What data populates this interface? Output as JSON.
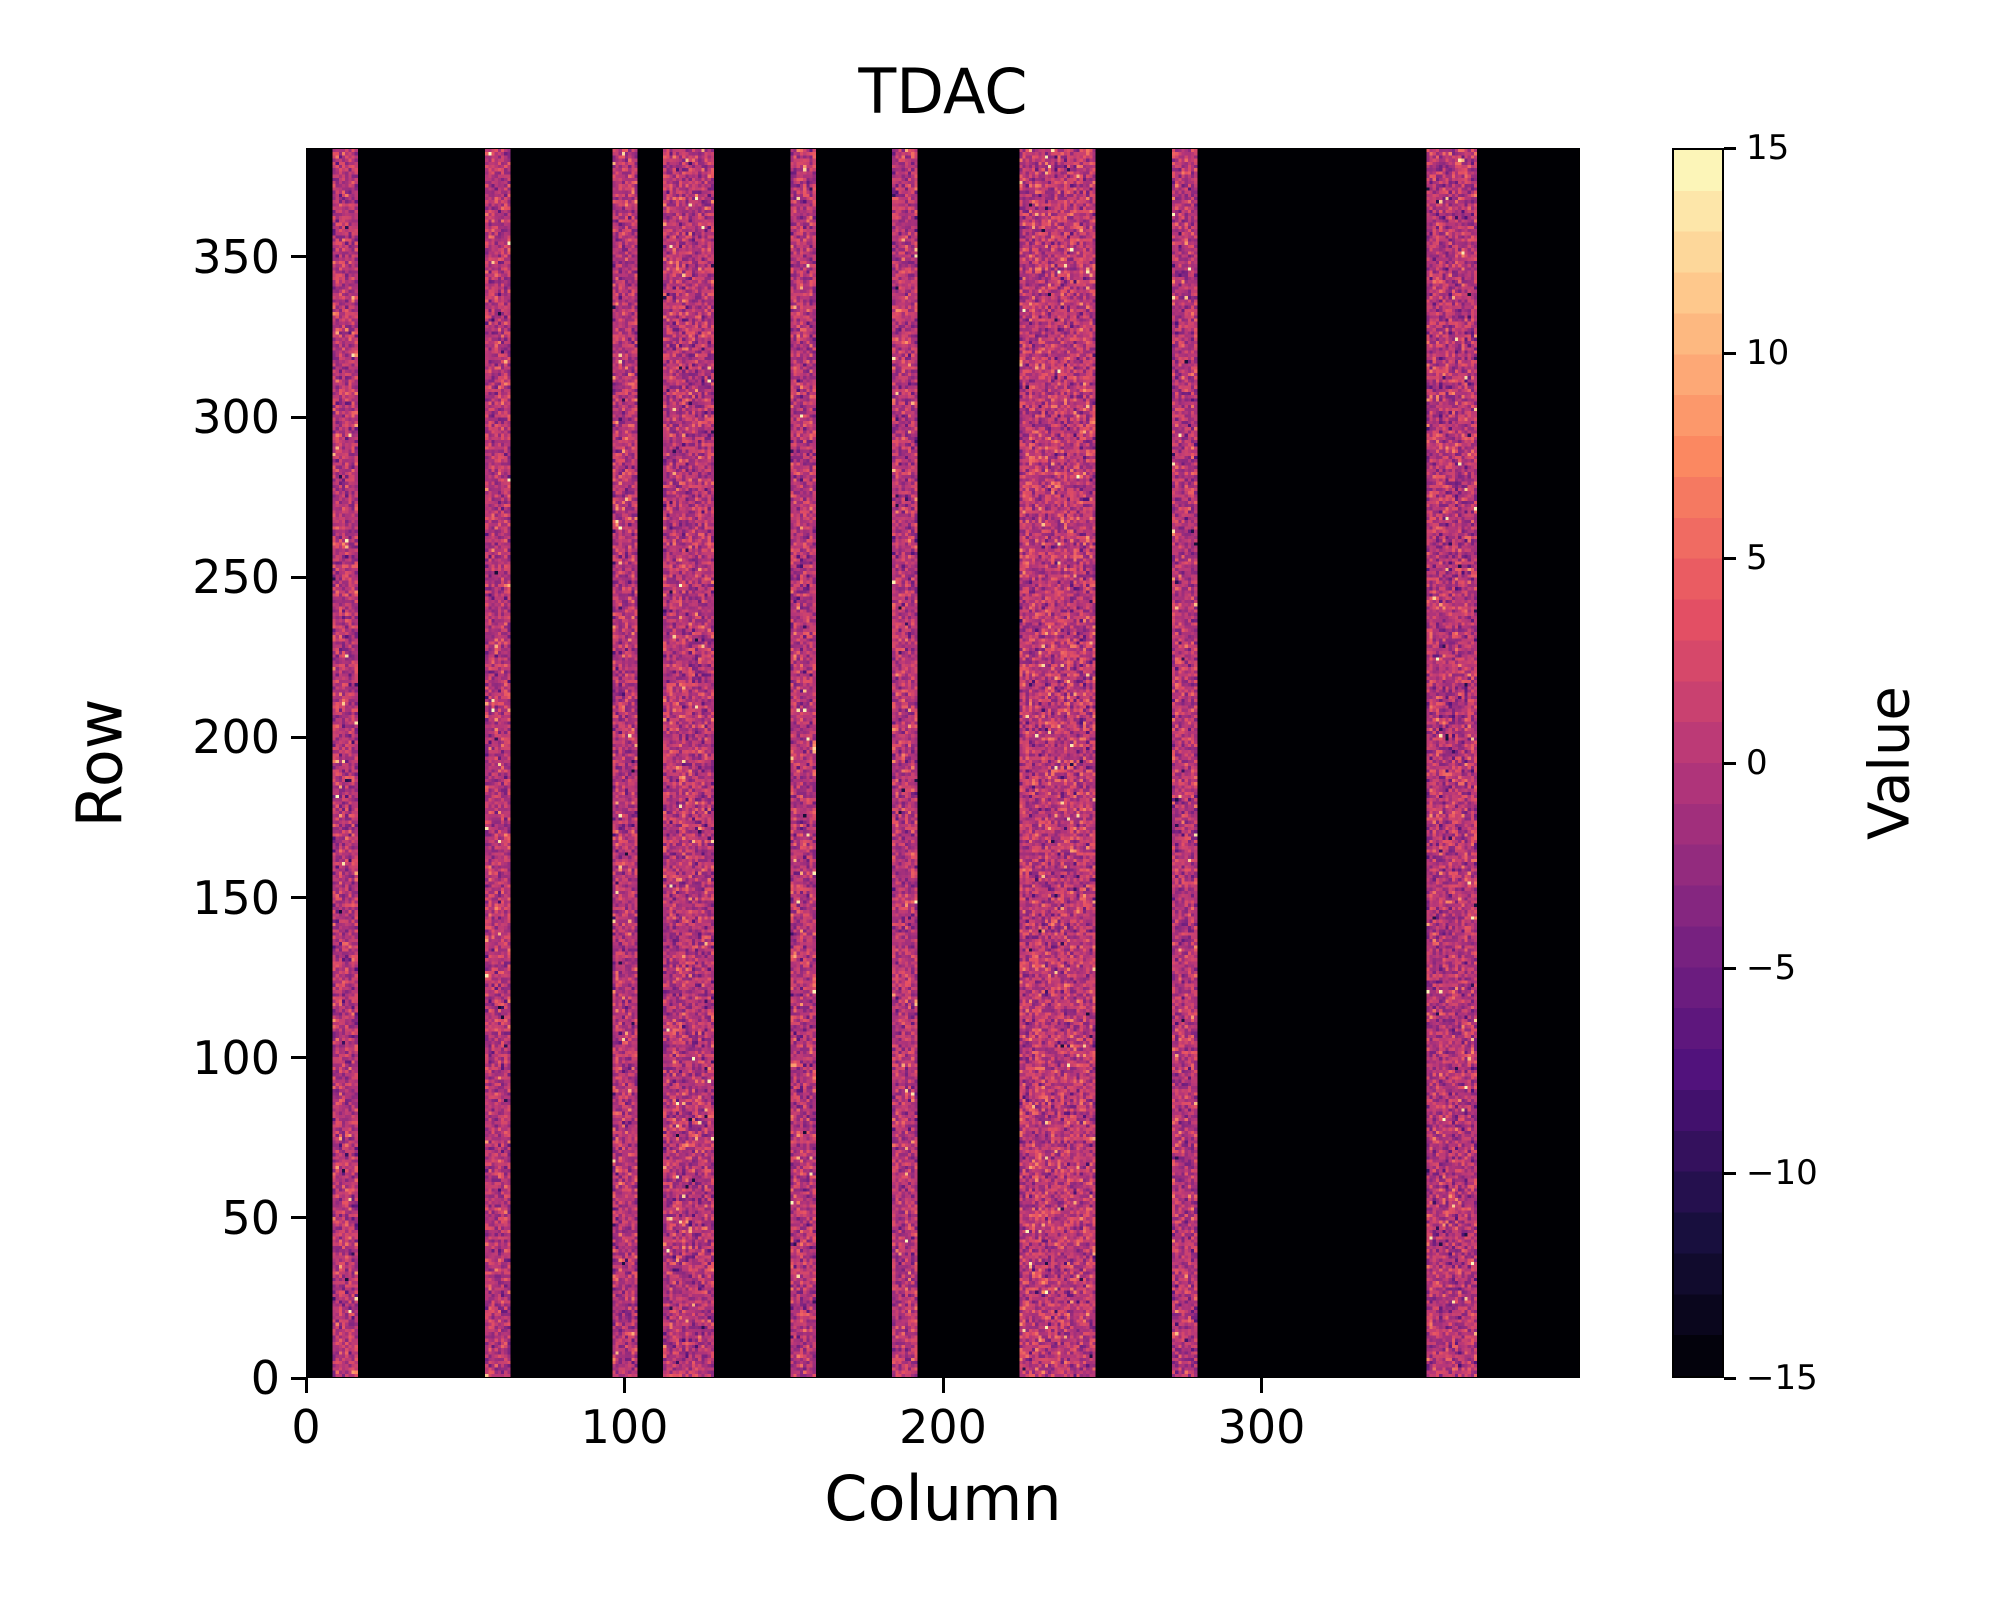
{
  "figure": {
    "title": "TDAC",
    "xlabel": "Column",
    "ylabel": "Row",
    "colorbar_label": "Value"
  },
  "chart_data": {
    "type": "heatmap",
    "title": "TDAC",
    "xlabel": "Column",
    "ylabel": "Row",
    "colorbar_label": "Value",
    "x_range": [
      0,
      400
    ],
    "y_range": [
      0,
      384
    ],
    "value_range": [
      -15,
      15
    ],
    "x_ticks": [
      0,
      100,
      200,
      300
    ],
    "y_ticks": [
      0,
      50,
      100,
      150,
      200,
      250,
      300,
      350
    ],
    "colorbar_ticks": [
      15,
      10,
      5,
      0,
      -5,
      -10,
      -15
    ],
    "colorbar_levels": 30,
    "colormap": "magma",
    "background_value": -15,
    "background_color": "#000004",
    "grid": false,
    "legend": "colorbar-right",
    "stripes": [
      {
        "col_start": 8,
        "col_end": 16,
        "mean": 0,
        "std": 2.6
      },
      {
        "col_start": 56,
        "col_end": 64,
        "mean": 0,
        "std": 2.6
      },
      {
        "col_start": 96,
        "col_end": 104,
        "mean": 0,
        "std": 2.6
      },
      {
        "col_start": 112,
        "col_end": 128,
        "mean": 0,
        "std": 2.7
      },
      {
        "col_start": 152,
        "col_end": 160,
        "mean": 0,
        "std": 2.6
      },
      {
        "col_start": 184,
        "col_end": 192,
        "mean": 0,
        "std": 2.6
      },
      {
        "col_start": 224,
        "col_end": 248,
        "mean": 0.5,
        "std": 2.8
      },
      {
        "col_start": 272,
        "col_end": 280,
        "mean": 0,
        "std": 2.6
      },
      {
        "col_start": 352,
        "col_end": 368,
        "mean": 0,
        "std": 2.7
      }
    ],
    "outlier_fraction": 0.025,
    "outlier_range": [
      -12,
      15
    ],
    "colormap_stops": [
      [
        0.0,
        0,
        0,
        4
      ],
      [
        0.125,
        26,
        16,
        66
      ],
      [
        0.25,
        81,
        18,
        124
      ],
      [
        0.375,
        129,
        37,
        129
      ],
      [
        0.5,
        182,
        54,
        121
      ],
      [
        0.625,
        230,
        81,
        98
      ],
      [
        0.75,
        251,
        136,
        97
      ],
      [
        0.875,
        254,
        196,
        136
      ],
      [
        1.0,
        252,
        253,
        191
      ]
    ]
  }
}
